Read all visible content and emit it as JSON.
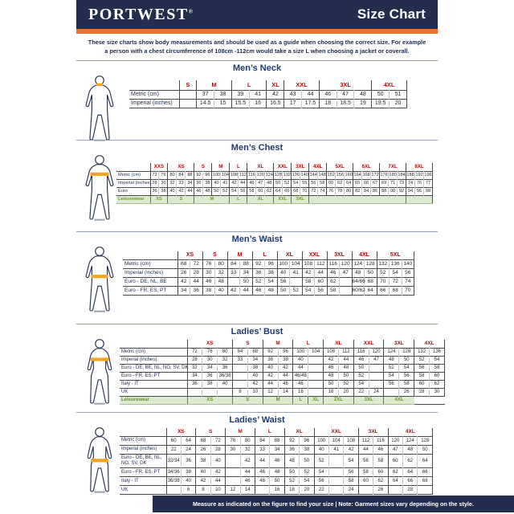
{
  "header": {
    "brand": "PORTWEST",
    "registered": "®",
    "title": "Size Chart"
  },
  "intro": {
    "line1": "These size charts show body measurements and should be used as a guide when choosing the correct size. For example",
    "line2": "a person with a chest circumference of 108cm -112cm would take a size L when choosing a jacket or coverall."
  },
  "footer": {
    "text": "Measure as indicated on the figure to find your size  |  Note: Garment sizes vary depending on the style."
  },
  "colors": {
    "navy": "#232e4e",
    "orange": "#ed7126",
    "size_red": "#b40a0a",
    "leisure_green_bg": "#dcead0",
    "leisure_green_text": "#699438",
    "highlight_orange": "#f5a21d"
  },
  "sections": [
    {
      "id": "mens-neck",
      "title": "Men’s Neck",
      "figure": {
        "type": "male",
        "highlight": "neck"
      },
      "sizes": [
        {
          "label": "S",
          "cols": 1
        },
        {
          "label": "M",
          "cols": 2
        },
        {
          "label": "L",
          "cols": 2
        },
        {
          "label": "XL",
          "cols": 1
        },
        {
          "label": "XXL",
          "cols": 2
        },
        {
          "label": "3XL",
          "cols": 3
        },
        {
          "label": "4XL",
          "cols": 2
        }
      ],
      "rows": [
        {
          "label": "Metric (cm)",
          "cells": [
            "",
            "37",
            "38",
            "39",
            "41",
            "42",
            "43",
            "44",
            "46",
            "47",
            "48",
            "50",
            "51"
          ]
        },
        {
          "label": "Imperial (inches)",
          "cells": [
            "",
            "14.5",
            "15",
            "15.5",
            "16",
            "16.5",
            "17",
            "17.5",
            "18",
            "18.5",
            "19",
            "19.5",
            "20"
          ]
        }
      ]
    },
    {
      "id": "mens-chest",
      "title": "Men’s Chest",
      "figure": {
        "type": "male",
        "highlight": "chest"
      },
      "sizes": [
        {
          "label": "XXS",
          "cols": 2
        },
        {
          "label": "XS",
          "cols": 3
        },
        {
          "label": "S",
          "cols": 2
        },
        {
          "label": "M",
          "cols": 2
        },
        {
          "label": "L",
          "cols": 2
        },
        {
          "label": "XL",
          "cols": 3
        },
        {
          "label": "XXL",
          "cols": 2
        },
        {
          "label": "3XL",
          "cols": 2
        },
        {
          "label": "4XL",
          "cols": 2
        },
        {
          "label": "5XL",
          "cols": 3
        },
        {
          "label": "6XL",
          "cols": 3
        },
        {
          "label": "7XL",
          "cols": 3
        },
        {
          "label": "8XL",
          "cols": 3
        }
      ],
      "rows": [
        {
          "label": "Metric (cm)",
          "cells": [
            "72",
            "76",
            "80",
            "84",
            "88",
            "92",
            "96",
            "100",
            "104",
            "108",
            "112",
            "116",
            "120",
            "124",
            "128",
            "132",
            "136",
            "140",
            "144",
            "148",
            "152",
            "156",
            "160",
            "164",
            "168",
            "172",
            "176",
            "180",
            "184",
            "188",
            "192",
            "196"
          ]
        },
        {
          "label": "Imperial (inches)",
          "cells": [
            "28",
            "30",
            "32",
            "33",
            "34",
            "36",
            "38",
            "40",
            "41",
            "42",
            "44",
            "46",
            "47",
            "48",
            "50",
            "52",
            "54",
            "55",
            "56",
            "58",
            "60",
            "62",
            "64",
            "65",
            "66",
            "67",
            "69",
            "71",
            "73",
            "74",
            "76",
            "77"
          ]
        },
        {
          "label": "Euro",
          "cells": [
            "36",
            "38",
            "40",
            "42",
            "44",
            "46",
            "48",
            "50",
            "52",
            "54",
            "56",
            "58",
            "60",
            "62",
            "64",
            "66",
            "68",
            "70",
            "72",
            "74",
            "76",
            "78",
            "80",
            "82",
            "84",
            "86",
            "88",
            "90",
            "92",
            "94",
            "96",
            "98"
          ]
        }
      ],
      "leisure": {
        "label": "Leisurewear",
        "cells": [
          {
            "text": "XS",
            "span": 2
          },
          {
            "text": "S",
            "span": 3
          },
          {
            "text": "M",
            "span": 4
          },
          {
            "text": "L",
            "span": 2
          },
          {
            "text": "XL",
            "span": 3
          },
          {
            "text": "XXL",
            "span": 2
          },
          {
            "text": "3XL",
            "span": 2
          },
          {
            "text": "",
            "span": 11
          },
          {
            "text": "",
            "span": 3
          }
        ]
      }
    },
    {
      "id": "mens-waist",
      "title": "Men’s Waist",
      "figure": {
        "type": "male",
        "highlight": "waist"
      },
      "sizes": [
        {
          "label": "XS",
          "cols": 2
        },
        {
          "label": "S",
          "cols": 2
        },
        {
          "label": "M",
          "cols": 2
        },
        {
          "label": "L",
          "cols": 2
        },
        {
          "label": "XL",
          "cols": 2
        },
        {
          "label": "XXL",
          "cols": 2
        },
        {
          "label": "3XL",
          "cols": 2
        },
        {
          "label": "4XL",
          "cols": 2
        },
        {
          "label": "5XL",
          "cols": 3
        }
      ],
      "rows": [
        {
          "label": "Metric (cm)",
          "cells": [
            "68",
            "72",
            "76",
            "80",
            "84",
            "88",
            "92",
            "96",
            "100",
            "104",
            "108",
            "112",
            "116",
            "120",
            "124",
            "128",
            "132",
            "136",
            "140"
          ]
        },
        {
          "label": "Imperial (inches)",
          "cells": [
            "26",
            "28",
            "30",
            "32",
            "33",
            "34",
            "36",
            "38",
            "40",
            "41",
            "42",
            "44",
            "46",
            "47",
            "48",
            "50",
            "52",
            "54",
            "56"
          ]
        },
        {
          "label": "Euro - DE, NL, BE",
          "cells": [
            "42",
            "44",
            "46",
            "48",
            "",
            "50",
            "52",
            "54",
            "56",
            "",
            "58",
            "60",
            "62",
            "",
            "64/66",
            "68",
            "70",
            "72",
            "74"
          ]
        },
        {
          "label": "Euro - FR, ES, PT",
          "cells": [
            "34",
            "36",
            "38",
            "40",
            "42",
            "44",
            "46",
            "48",
            "50",
            "52",
            "54",
            "56",
            "58",
            "",
            "60/62",
            "64",
            "66",
            "68",
            "70"
          ]
        }
      ]
    },
    {
      "id": "ladies-bust",
      "title": "Ladies’ Bust",
      "figure": {
        "type": "female",
        "highlight": "bust"
      },
      "sizes": [
        {
          "label": "XS",
          "cols": 3
        },
        {
          "label": "S",
          "cols": 2
        },
        {
          "label": "M",
          "cols": 2
        },
        {
          "label": "L",
          "cols": 2
        },
        {
          "label": "XL",
          "cols": 2
        },
        {
          "label": "XXL",
          "cols": 2
        },
        {
          "label": "3XL",
          "cols": 2
        },
        {
          "label": "4XL",
          "cols": 2
        }
      ],
      "rows": [
        {
          "label": "Metric (cm)",
          "cells": [
            "72",
            "76",
            "80",
            "84",
            "88",
            "92",
            "96",
            "100",
            "104",
            "108",
            "112",
            "116",
            "120",
            "124",
            "128",
            "132",
            "136"
          ]
        },
        {
          "label": "Imperial (inches)",
          "cells": [
            "28",
            "30",
            "32",
            "33",
            "34",
            "36",
            "38",
            "40",
            "",
            "42",
            "44",
            "46",
            "47",
            "48",
            "50",
            "52",
            "54"
          ]
        },
        {
          "label": "Euro - DE, BE, NL, NO, SV, DK",
          "cells": [
            "32",
            "34",
            "36",
            "",
            "38",
            "40",
            "42",
            "44",
            "",
            "46",
            "48",
            "50",
            "",
            "52",
            "54",
            "56",
            "58"
          ]
        },
        {
          "label": "Euro - FR, ES, PT",
          "cells": [
            "34",
            "36",
            "36/38",
            "",
            "40",
            "42",
            "44",
            "46/48",
            "",
            "48",
            "50",
            "52",
            "",
            "54",
            "56",
            "58",
            "60"
          ]
        },
        {
          "label": "Italy - IT",
          "cells": [
            "36",
            "38",
            "40",
            "",
            "42",
            "44",
            "46",
            "46",
            "",
            "50",
            "52",
            "54",
            "",
            "56",
            "58",
            "60",
            "62"
          ]
        },
        {
          "label": "UK",
          "cells": [
            "",
            "",
            "",
            "8",
            "10",
            "12",
            "14",
            "16",
            "",
            "18",
            "20",
            "22",
            "24",
            "",
            "26",
            "28",
            "30"
          ]
        }
      ],
      "leisure": {
        "label": "Leisurewear",
        "cells": [
          {
            "text": "XS",
            "span": 3
          },
          {
            "text": "S",
            "span": 2
          },
          {
            "text": "M",
            "span": 2
          },
          {
            "text": "L",
            "span": 1
          },
          {
            "text": "XL",
            "span": 1
          },
          {
            "text": "2XL",
            "span": 2
          },
          {
            "text": "3XL",
            "span": 2
          },
          {
            "text": "4XL",
            "span": 2
          },
          {
            "text": "",
            "span": 2,
            "green": false
          }
        ]
      }
    },
    {
      "id": "ladies-waist",
      "title": "Ladies’ Waist",
      "figure": {
        "type": "female",
        "highlight": "hips"
      },
      "sizes": [
        {
          "label": "XS",
          "cols": 2
        },
        {
          "label": "S",
          "cols": 2
        },
        {
          "label": "M",
          "cols": 2
        },
        {
          "label": "L",
          "cols": 2
        },
        {
          "label": "XL",
          "cols": 2
        },
        {
          "label": "XXL",
          "cols": 3
        },
        {
          "label": "3XL",
          "cols": 2
        },
        {
          "label": "4XL",
          "cols": 3
        }
      ],
      "rows": [
        {
          "label": "Metric (cm)",
          "cells": [
            "60",
            "64",
            "68",
            "72",
            "76",
            "80",
            "84",
            "88",
            "92",
            "96",
            "100",
            "104",
            "108",
            "112",
            "116",
            "120",
            "124",
            "128"
          ]
        },
        {
          "label": "Imperial (inches)",
          "cells": [
            "22",
            "24",
            "26",
            "28",
            "30",
            "32",
            "33",
            "34",
            "36",
            "38",
            "40",
            "41",
            "42",
            "44",
            "46",
            "47",
            "48",
            "50"
          ]
        },
        {
          "label": "Euro - DE, BE, NL, NO, SV, DK",
          "cells": [
            "32/34",
            "36",
            "38",
            "40",
            "",
            "42",
            "44",
            "46",
            "48",
            "50",
            "52",
            "",
            "54",
            "56",
            "58",
            "60",
            "62",
            "64"
          ]
        },
        {
          "label": "Euro - FR, ES, PT",
          "cells": [
            "34/36",
            "38",
            "40",
            "42",
            "",
            "44",
            "46",
            "48",
            "50",
            "52",
            "54",
            "",
            "56",
            "58",
            "60",
            "62",
            "64",
            "66"
          ]
        },
        {
          "label": "Italy - IT",
          "cells": [
            "36/38",
            "40",
            "42",
            "44",
            "",
            "46",
            "48",
            "50",
            "52",
            "54",
            "56",
            "",
            "58",
            "60",
            "62",
            "64",
            "66",
            "68"
          ]
        },
        {
          "label": "UK",
          "cells": [
            "",
            "6",
            "8",
            "10",
            "12",
            "14",
            "",
            "16",
            "18",
            "20",
            "22",
            "",
            "24",
            "",
            "26",
            "",
            "28",
            ""
          ]
        }
      ]
    }
  ]
}
